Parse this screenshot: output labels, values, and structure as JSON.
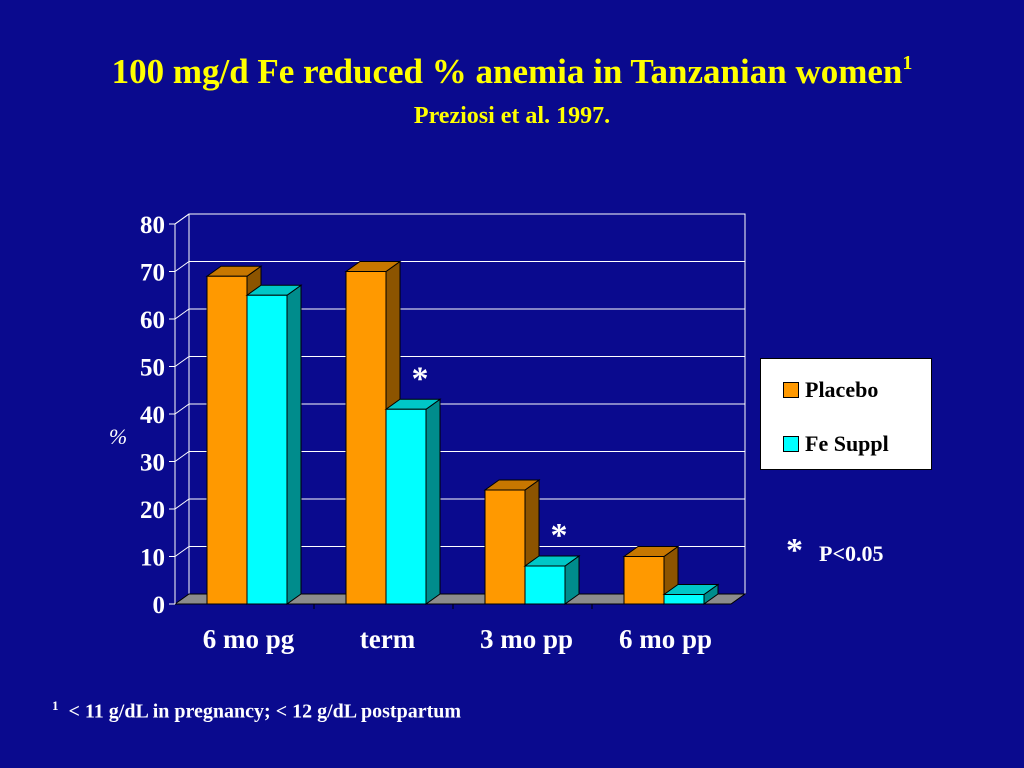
{
  "title": {
    "text": "100 mg/d Fe reduced % anemia in Tanzanian women",
    "sup": "1"
  },
  "subtitle": "Preziosi et al. 1997.",
  "colors": {
    "background": "#0a0a8e",
    "title": "#ffff00",
    "placebo": "#ff9900",
    "fe_suppl": "#00ffff"
  },
  "chart_data": {
    "type": "bar",
    "categories": [
      "6 mo pg",
      "term",
      "3 mo pp",
      "6 mo pp"
    ],
    "series": [
      {
        "name": "Placebo",
        "values": [
          69,
          70,
          24,
          10
        ]
      },
      {
        "name": "Fe Suppl",
        "values": [
          65,
          41,
          8,
          2
        ]
      }
    ],
    "ylabel": "%",
    "ylim": [
      0,
      80
    ],
    "yticks": [
      0,
      10,
      20,
      30,
      40,
      50,
      60,
      70,
      80
    ],
    "grid": true,
    "legend": "right",
    "style": "3d",
    "significance_markers": [
      {
        "category": "term",
        "label": "*"
      },
      {
        "category": "3 mo pp",
        "label": "*"
      }
    ]
  },
  "legend": {
    "items": [
      {
        "label": "Placebo"
      },
      {
        "label": "Fe Suppl"
      }
    ]
  },
  "pnote": {
    "star": "*",
    "text": "P<0.05"
  },
  "footnote": {
    "sup": "1",
    "text": "< 11 g/dL in pregnancy; < 12 g/dL postpartum"
  }
}
